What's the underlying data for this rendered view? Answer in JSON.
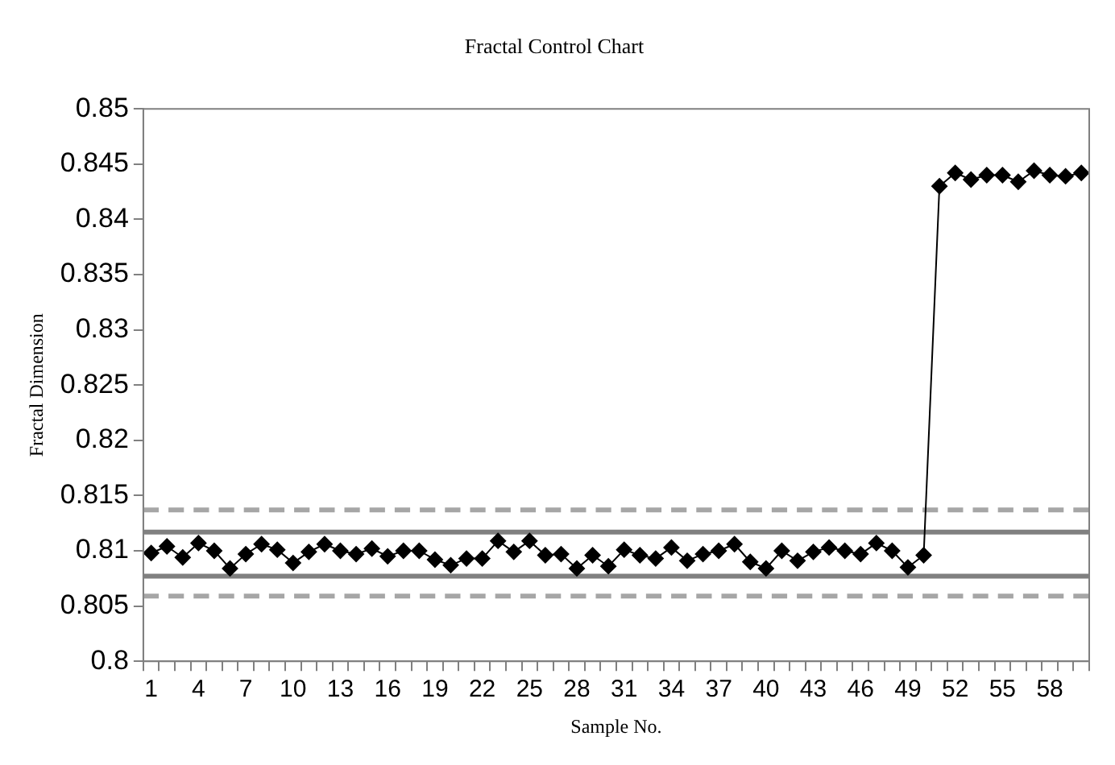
{
  "chart_data": {
    "type": "line",
    "title": "Fractal Control Chart",
    "xlabel": "Sample No.",
    "ylabel": "Fractal Dimension",
    "categories": [
      "1",
      null,
      null,
      "4",
      null,
      null,
      "7",
      null,
      null,
      "10",
      null,
      null,
      "13",
      null,
      null,
      "16",
      null,
      null,
      "19",
      null,
      null,
      "22",
      null,
      null,
      "25",
      null,
      null,
      "28",
      null,
      null,
      "31",
      null,
      null,
      "34",
      null,
      null,
      "37",
      null,
      null,
      "40",
      null,
      null,
      "43",
      null,
      null,
      "46",
      null,
      null,
      "49",
      null,
      null,
      "52",
      null,
      null,
      "55",
      null,
      null,
      "58",
      null,
      null
    ],
    "series": [
      {
        "color": "#000000",
        "values": [
          0.8098,
          0.8104,
          0.8094,
          0.8107,
          0.81,
          0.8084,
          0.8097,
          0.8106,
          0.8101,
          0.8089,
          0.8099,
          0.8106,
          0.81,
          0.8097,
          0.8102,
          0.8095,
          0.81,
          0.81,
          0.8092,
          0.8087,
          0.8093,
          0.8093,
          0.8109,
          0.8099,
          0.8109,
          0.8096,
          0.8097,
          0.8084,
          0.8096,
          0.8086,
          0.8101,
          0.8096,
          0.8093,
          0.8103,
          0.8091,
          0.8097,
          0.81,
          0.8106,
          0.809,
          0.8084,
          0.81,
          0.8091,
          0.8099,
          0.8103,
          0.81,
          0.8097,
          0.8107,
          0.81,
          0.8085,
          0.8096,
          0.843,
          0.8442,
          0.8436,
          0.844,
          0.844,
          0.8434,
          0.8444,
          0.844,
          0.8439,
          0.8442
        ]
      }
    ],
    "marker": "diamond",
    "line_style": "solid",
    "grid": false,
    "legend": false,
    "ylim": [
      0.8,
      0.85
    ],
    "yticks": [
      0.8,
      0.805,
      0.81,
      0.815,
      0.82,
      0.825,
      0.83,
      0.835,
      0.84,
      0.845,
      0.85
    ],
    "ref_lines": [
      {
        "axis": "y",
        "value": 0.8137,
        "color": "#a6a6a6",
        "line_style": "dashed"
      },
      {
        "axis": "y",
        "value": 0.8117,
        "color": "#808080",
        "line_style": "solid"
      },
      {
        "axis": "y",
        "value": 0.8077,
        "color": "#808080",
        "line_style": "solid"
      },
      {
        "axis": "y",
        "value": 0.8059,
        "color": "#a6a6a6",
        "line_style": "dashed"
      }
    ]
  }
}
